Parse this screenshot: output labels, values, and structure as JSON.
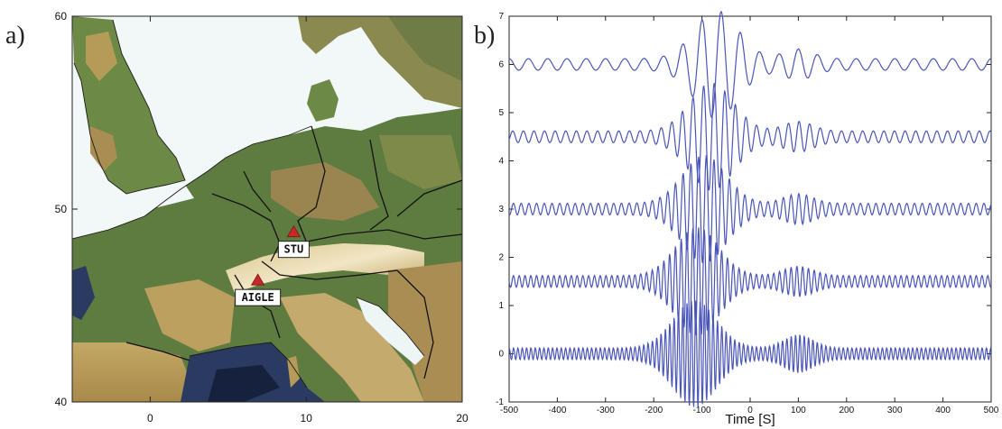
{
  "figure": {
    "panel_a_label": "a)",
    "panel_b_label": "b)"
  },
  "colors": {
    "sea": "#f2f7f7",
    "lowland": "#5e7c40",
    "upland": "#b59a58",
    "mountain": "#e0cf9a",
    "border": "#111111",
    "station": "#c8282a",
    "deep_sea": "#1b2a46",
    "trace": "#4a55b8"
  },
  "chart_data": [
    {
      "type": "map",
      "xlim": [
        -5,
        20
      ],
      "ylim": [
        40,
        60
      ],
      "x_ticks": [
        "0",
        "10",
        "20"
      ],
      "y_ticks": [
        "40",
        "50",
        "60"
      ],
      "stations": [
        {
          "name": "STU",
          "lon": 9.2,
          "lat": 48.8
        },
        {
          "name": "AIGLE",
          "lon": 6.9,
          "lat": 46.3
        }
      ]
    },
    {
      "type": "line",
      "xlabel": "Time [S]",
      "xlim": [
        -500,
        500
      ],
      "ylim": [
        -1,
        7
      ],
      "x_ticks": [
        "-500",
        "-400",
        "-300",
        "-200",
        "-100",
        "0",
        "100",
        "200",
        "300",
        "400",
        "500"
      ],
      "y_ticks": [
        "-1",
        "0",
        "1",
        "2",
        "3",
        "4",
        "5",
        "6",
        "7"
      ],
      "series": [
        {
          "baseline": 6.0,
          "peak_time": -70,
          "peak_amplitude": 1.0,
          "period": 40
        },
        {
          "baseline": 4.5,
          "peak_time": -80,
          "peak_amplitude": 1.0,
          "period": 22
        },
        {
          "baseline": 3.0,
          "peak_time": -95,
          "peak_amplitude": 1.0,
          "period": 16
        },
        {
          "baseline": 1.5,
          "peak_time": -110,
          "peak_amplitude": 1.0,
          "period": 12
        },
        {
          "baseline": 0.0,
          "peak_time": -115,
          "peak_amplitude": 1.0,
          "period": 9
        }
      ]
    }
  ]
}
